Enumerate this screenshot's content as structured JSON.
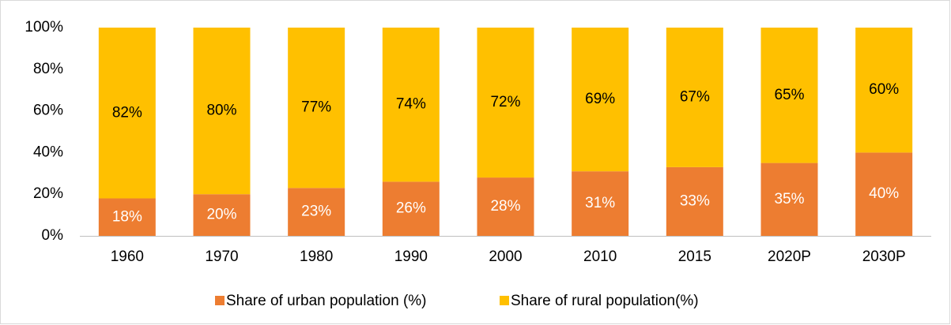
{
  "chart_data": {
    "type": "stacked_bar",
    "categories": [
      "1960",
      "1970",
      "1980",
      "1990",
      "2000",
      "2010",
      "2015",
      "2020P",
      "2030P"
    ],
    "series": [
      {
        "name": "Share of urban population (%)",
        "color": "#ED7D31",
        "label_color": "#ffffff",
        "values": [
          18,
          20,
          23,
          26,
          28,
          31,
          33,
          35,
          40
        ],
        "value_labels": [
          "18%",
          "20%",
          "23%",
          "26%",
          "28%",
          "31%",
          "33%",
          "35%",
          "40%"
        ]
      },
      {
        "name": "Share of rural population(%)",
        "color": "#FFC000",
        "label_color": "#000000",
        "values": [
          82,
          80,
          77,
          74,
          72,
          69,
          67,
          65,
          60
        ],
        "value_labels": [
          "82%",
          "80%",
          "77%",
          "74%",
          "72%",
          "69%",
          "67%",
          "65%",
          "60%"
        ]
      }
    ],
    "ylim": [
      0,
      100
    ],
    "yticks": [
      {
        "value": 0,
        "label": "0%"
      },
      {
        "value": 20,
        "label": "20%"
      },
      {
        "value": 40,
        "label": "40%"
      },
      {
        "value": 60,
        "label": "60%"
      },
      {
        "value": 80,
        "label": "80%"
      },
      {
        "value": 100,
        "label": "100%"
      }
    ],
    "grid": false,
    "legend": "bottom"
  }
}
